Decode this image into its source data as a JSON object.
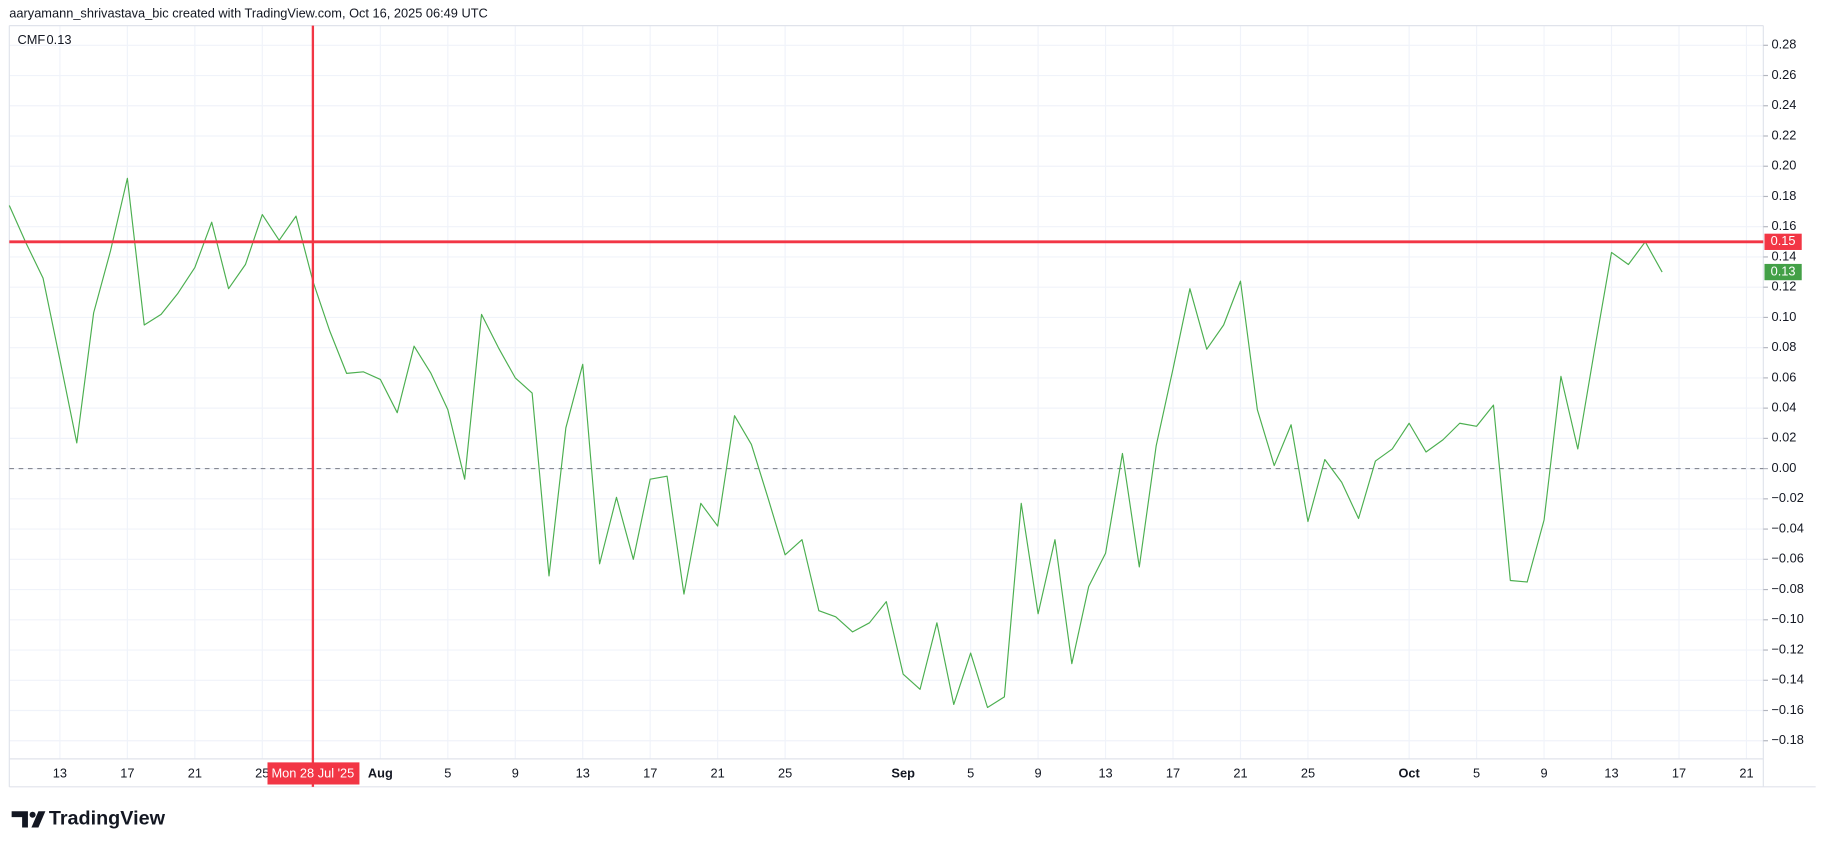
{
  "header": "aaryamann_shrivastava_bic created with TradingView.com, Oct 16, 2025 06:49 UTC",
  "footer": "TradingView",
  "chart_data": {
    "type": "line",
    "x": [
      "2025-07-10",
      "2025-07-11",
      "2025-07-12",
      "2025-07-13",
      "2025-07-14",
      "2025-07-15",
      "2025-07-16",
      "2025-07-17",
      "2025-07-18",
      "2025-07-19",
      "2025-07-20",
      "2025-07-21",
      "2025-07-22",
      "2025-07-23",
      "2025-07-24",
      "2025-07-25",
      "2025-07-26",
      "2025-07-27",
      "2025-07-28",
      "2025-07-29",
      "2025-07-30",
      "2025-07-31",
      "2025-08-01",
      "2025-08-02",
      "2025-08-03",
      "2025-08-04",
      "2025-08-05",
      "2025-08-06",
      "2025-08-07",
      "2025-08-08",
      "2025-08-09",
      "2025-08-10",
      "2025-08-11",
      "2025-08-12",
      "2025-08-13",
      "2025-08-14",
      "2025-08-15",
      "2025-08-16",
      "2025-08-17",
      "2025-08-18",
      "2025-08-19",
      "2025-08-20",
      "2025-08-21",
      "2025-08-22",
      "2025-08-23",
      "2025-08-24",
      "2025-08-25",
      "2025-08-26",
      "2025-08-27",
      "2025-08-28",
      "2025-08-29",
      "2025-08-30",
      "2025-08-31",
      "2025-09-01",
      "2025-09-02",
      "2025-09-03",
      "2025-09-04",
      "2025-09-05",
      "2025-09-06",
      "2025-09-07",
      "2025-09-08",
      "2025-09-09",
      "2025-09-10",
      "2025-09-11",
      "2025-09-12",
      "2025-09-13",
      "2025-09-14",
      "2025-09-15",
      "2025-09-16",
      "2025-09-17",
      "2025-09-18",
      "2025-09-19",
      "2025-09-20",
      "2025-09-21",
      "2025-09-22",
      "2025-09-23",
      "2025-09-24",
      "2025-09-25",
      "2025-09-26",
      "2025-09-27",
      "2025-09-28",
      "2025-09-29",
      "2025-09-30",
      "2025-10-01",
      "2025-10-02",
      "2025-10-03",
      "2025-10-04",
      "2025-10-05",
      "2025-10-06",
      "2025-10-07",
      "2025-10-08",
      "2025-10-09",
      "2025-10-10",
      "2025-10-11",
      "2025-10-12",
      "2025-10-13",
      "2025-10-14",
      "2025-10-15",
      "2025-10-16"
    ],
    "series": [
      {
        "name": "CMF",
        "color": "#4caf50",
        "last_value_color": "#43a047",
        "values": [
          0.174,
          0.149,
          0.126,
          0.072,
          0.017,
          0.103,
          0.144,
          0.192,
          0.095,
          0.102,
          0.116,
          0.133,
          0.163,
          0.119,
          0.135,
          0.168,
          0.151,
          0.167,
          0.124,
          0.091,
          0.063,
          0.064,
          0.059,
          0.037,
          0.081,
          0.063,
          0.039,
          -0.007,
          0.102,
          0.08,
          0.06,
          0.05,
          -0.071,
          0.027,
          0.069,
          -0.063,
          -0.019,
          -0.06,
          -0.007,
          -0.005,
          -0.083,
          -0.023,
          -0.038,
          0.035,
          0.016,
          -0.02,
          -0.057,
          -0.047,
          -0.094,
          -0.098,
          -0.108,
          -0.102,
          -0.088,
          -0.136,
          -0.146,
          -0.102,
          -0.156,
          -0.122,
          -0.158,
          -0.151,
          -0.023,
          -0.096,
          -0.047,
          -0.129,
          -0.078,
          -0.056,
          0.01,
          -0.065,
          0.015,
          0.066,
          0.119,
          0.079,
          0.095,
          0.124,
          0.039,
          0.002,
          0.029,
          -0.035,
          0.006,
          -0.009,
          -0.033,
          0.005,
          0.013,
          0.03,
          0.011,
          0.019,
          0.03,
          0.028,
          0.042,
          -0.074,
          -0.075,
          -0.034,
          0.061,
          0.013,
          0.079,
          0.143,
          0.135,
          0.15,
          0.13
        ]
      }
    ],
    "xlim": [
      "2025-07-10",
      "2025-10-22"
    ],
    "xticks": [
      {
        "value": "2025-07-13",
        "label": "13"
      },
      {
        "value": "2025-07-17",
        "label": "17"
      },
      {
        "value": "2025-07-21",
        "label": "21"
      },
      {
        "value": "2025-07-25",
        "label": "25"
      },
      {
        "value": "2025-08-01",
        "label": "Aug"
      },
      {
        "value": "2025-08-05",
        "label": "5"
      },
      {
        "value": "2025-08-09",
        "label": "9"
      },
      {
        "value": "2025-08-13",
        "label": "13"
      },
      {
        "value": "2025-08-17",
        "label": "17"
      },
      {
        "value": "2025-08-21",
        "label": "21"
      },
      {
        "value": "2025-08-25",
        "label": "25"
      },
      {
        "value": "2025-09-01",
        "label": "Sep"
      },
      {
        "value": "2025-09-05",
        "label": "5"
      },
      {
        "value": "2025-09-09",
        "label": "9"
      },
      {
        "value": "2025-09-13",
        "label": "13"
      },
      {
        "value": "2025-09-17",
        "label": "17"
      },
      {
        "value": "2025-09-21",
        "label": "21"
      },
      {
        "value": "2025-09-25",
        "label": "25"
      },
      {
        "value": "2025-10-01",
        "label": "Oct"
      },
      {
        "value": "2025-10-05",
        "label": "5"
      },
      {
        "value": "2025-10-09",
        "label": "9"
      },
      {
        "value": "2025-10-13",
        "label": "13"
      },
      {
        "value": "2025-10-17",
        "label": "17"
      },
      {
        "value": "2025-10-21",
        "label": "21"
      }
    ],
    "ylim": [
      -0.192,
      0.293
    ],
    "yticks": [
      {
        "value": 0.28,
        "label": "0.28"
      },
      {
        "value": 0.26,
        "label": "0.26"
      },
      {
        "value": 0.24,
        "label": "0.24"
      },
      {
        "value": 0.22,
        "label": "0.22"
      },
      {
        "value": 0.2,
        "label": "0.20"
      },
      {
        "value": 0.18,
        "label": "0.18"
      },
      {
        "value": 0.16,
        "label": "0.16"
      },
      {
        "value": 0.14,
        "label": "0.14"
      },
      {
        "value": 0.12,
        "label": "0.12"
      },
      {
        "value": 0.1,
        "label": "0.10"
      },
      {
        "value": 0.08,
        "label": "0.08"
      },
      {
        "value": 0.06,
        "label": "0.06"
      },
      {
        "value": 0.04,
        "label": "0.04"
      },
      {
        "value": 0.02,
        "label": "0.02"
      },
      {
        "value": 0,
        "label": "0.00"
      },
      {
        "value": -0.02,
        "label": "−0.02"
      },
      {
        "value": -0.04,
        "label": "−0.04"
      },
      {
        "value": -0.06,
        "label": "−0.06"
      },
      {
        "value": -0.08,
        "label": "−0.08"
      },
      {
        "value": -0.1,
        "label": "−0.10"
      },
      {
        "value": -0.12,
        "label": "−0.12"
      },
      {
        "value": -0.14,
        "label": "−0.14"
      },
      {
        "value": -0.16,
        "label": "−0.16"
      },
      {
        "value": -0.18,
        "label": "−0.18"
      }
    ],
    "grid": true,
    "hline": 0,
    "crosshair": {
      "x": "2025-07-28",
      "x_label": "Mon 28 Jul '25",
      "y": 0.15,
      "color": "#f23645"
    }
  }
}
